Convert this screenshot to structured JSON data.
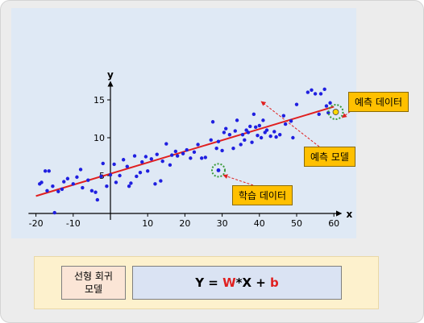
{
  "chart_data": {
    "type": "scatter",
    "xlabel": "x",
    "ylabel": "y",
    "xlim": [
      -22,
      62
    ],
    "ylim": [
      0,
      17
    ],
    "xticks": [
      -20,
      -10,
      0,
      10,
      20,
      30,
      40,
      50,
      60
    ],
    "xtick_labels": [
      "-20",
      "-10",
      "",
      "10",
      "20",
      "30",
      "40",
      "50",
      "60"
    ],
    "yticks": [
      5,
      10,
      15
    ],
    "ytick_labels": [
      "5",
      "10",
      "15"
    ],
    "grid": false,
    "points_color": "#1f1fe0",
    "line_color": "#e02020",
    "regression_line": [
      [
        -20,
        2.3
      ],
      [
        60,
        14.1
      ]
    ],
    "training_data": [
      {
        "x": -19,
        "y": 3.9
      },
      {
        "x": -18.5,
        "y": 4.1
      },
      {
        "x": -17.5,
        "y": 5.6
      },
      {
        "x": -16.5,
        "y": 5.6
      },
      {
        "x": -17,
        "y": 3.0
      },
      {
        "x": -15.5,
        "y": 3.6
      },
      {
        "x": -14,
        "y": 2.9
      },
      {
        "x": -13,
        "y": 3.2
      },
      {
        "x": -12.5,
        "y": 4.2
      },
      {
        "x": -11.5,
        "y": 4.6
      },
      {
        "x": -10,
        "y": 3.9
      },
      {
        "x": -9,
        "y": 4.8
      },
      {
        "x": -8,
        "y": 5.8
      },
      {
        "x": -7.5,
        "y": 3.4
      },
      {
        "x": -6,
        "y": 4.4
      },
      {
        "x": -5,
        "y": 3.0
      },
      {
        "x": -4,
        "y": 2.8
      },
      {
        "x": -3.5,
        "y": 1.8
      },
      {
        "x": -2.5,
        "y": 4.9
      },
      {
        "x": -2,
        "y": 6.6
      },
      {
        "x": -1,
        "y": 3.6
      },
      {
        "x": -15,
        "y": 0.1
      },
      {
        "x": 0,
        "y": 5.1
      },
      {
        "x": 1,
        "y": 6.5
      },
      {
        "x": 1.5,
        "y": 4.1
      },
      {
        "x": 2.5,
        "y": 5.0
      },
      {
        "x": 3.5,
        "y": 7.1
      },
      {
        "x": 4.5,
        "y": 6.2
      },
      {
        "x": 5,
        "y": 3.6
      },
      {
        "x": 5.5,
        "y": 4.0
      },
      {
        "x": 6.5,
        "y": 7.6
      },
      {
        "x": 7,
        "y": 4.9
      },
      {
        "x": 8,
        "y": 5.4
      },
      {
        "x": 8.5,
        "y": 6.8
      },
      {
        "x": 9.5,
        "y": 7.5
      },
      {
        "x": 10,
        "y": 5.6
      },
      {
        "x": 11,
        "y": 7.2
      },
      {
        "x": 12,
        "y": 3.9
      },
      {
        "x": 12.5,
        "y": 7.8
      },
      {
        "x": 13.5,
        "y": 4.3
      },
      {
        "x": 14,
        "y": 6.9
      },
      {
        "x": 15,
        "y": 9.2
      },
      {
        "x": 16,
        "y": 6.4
      },
      {
        "x": 16.5,
        "y": 7.7
      },
      {
        "x": 17.5,
        "y": 8.2
      },
      {
        "x": 18,
        "y": 7.6
      },
      {
        "x": 19.5,
        "y": 7.9
      },
      {
        "x": 20.5,
        "y": 8.4
      },
      {
        "x": 21.5,
        "y": 7.3
      },
      {
        "x": 22.5,
        "y": 8.1
      },
      {
        "x": 23.5,
        "y": 9.1
      },
      {
        "x": 24.5,
        "y": 7.3
      },
      {
        "x": 25.5,
        "y": 7.4
      },
      {
        "x": 27,
        "y": 9.7
      },
      {
        "x": 27.5,
        "y": 12.1
      },
      {
        "x": 28.5,
        "y": 8.6
      },
      {
        "x": 29,
        "y": 9.5
      },
      {
        "x": 30,
        "y": 8.3
      },
      {
        "x": 30.5,
        "y": 10.7
      },
      {
        "x": 31,
        "y": 11.2
      },
      {
        "x": 32,
        "y": 10.4
      },
      {
        "x": 33,
        "y": 8.6
      },
      {
        "x": 33.5,
        "y": 10.9
      },
      {
        "x": 34,
        "y": 12.3
      },
      {
        "x": 35,
        "y": 9.1
      },
      {
        "x": 35.5,
        "y": 10.4
      },
      {
        "x": 36,
        "y": 9.7
      },
      {
        "x": 36.5,
        "y": 11.0
      },
      {
        "x": 37,
        "y": 10.7
      },
      {
        "x": 37.5,
        "y": 11.5
      },
      {
        "x": 38,
        "y": 9.4
      },
      {
        "x": 38.5,
        "y": 13.1
      },
      {
        "x": 39,
        "y": 11.4
      },
      {
        "x": 39.5,
        "y": 10.3
      },
      {
        "x": 40,
        "y": 11.6
      },
      {
        "x": 40.5,
        "y": 10.0
      },
      {
        "x": 41,
        "y": 12.3
      },
      {
        "x": 41.5,
        "y": 10.7
      },
      {
        "x": 42,
        "y": 11.0
      },
      {
        "x": 43,
        "y": 10.2
      },
      {
        "x": 44,
        "y": 10.8
      },
      {
        "x": 44.5,
        "y": 10.1
      },
      {
        "x": 45.5,
        "y": 10.4
      },
      {
        "x": 46.5,
        "y": 12.9
      },
      {
        "x": 47,
        "y": 11.8
      },
      {
        "x": 48.5,
        "y": 12.2
      },
      {
        "x": 49,
        "y": 10.0
      },
      {
        "x": 50,
        "y": 14.4
      },
      {
        "x": 53,
        "y": 16.0
      },
      {
        "x": 54,
        "y": 16.3
      },
      {
        "x": 55,
        "y": 15.8
      },
      {
        "x": 56,
        "y": 13.1
      },
      {
        "x": 56.5,
        "y": 15.8
      },
      {
        "x": 57.5,
        "y": 16.4
      },
      {
        "x": 58,
        "y": 14.2
      },
      {
        "x": 58.5,
        "y": 13.3
      },
      {
        "x": 59,
        "y": 14.6
      }
    ],
    "highlighted_training_point": {
      "x": 29,
      "y": 5.7
    },
    "prediction_point": {
      "x": 60.5,
      "y": 13.4
    },
    "prediction_point_color": "#ffd700",
    "annotations": {
      "prediction_data": "예측 데이터",
      "prediction_model": "예측 모델",
      "training_data": "학습 데이터"
    },
    "annotation_box_color": "#ffc000"
  },
  "formula": {
    "model_label": "선형 회귀\n모델",
    "prefix": "Y = ",
    "w": "W",
    "mid": "*X + ",
    "b": "b",
    "highlight_color": "#e02020"
  }
}
